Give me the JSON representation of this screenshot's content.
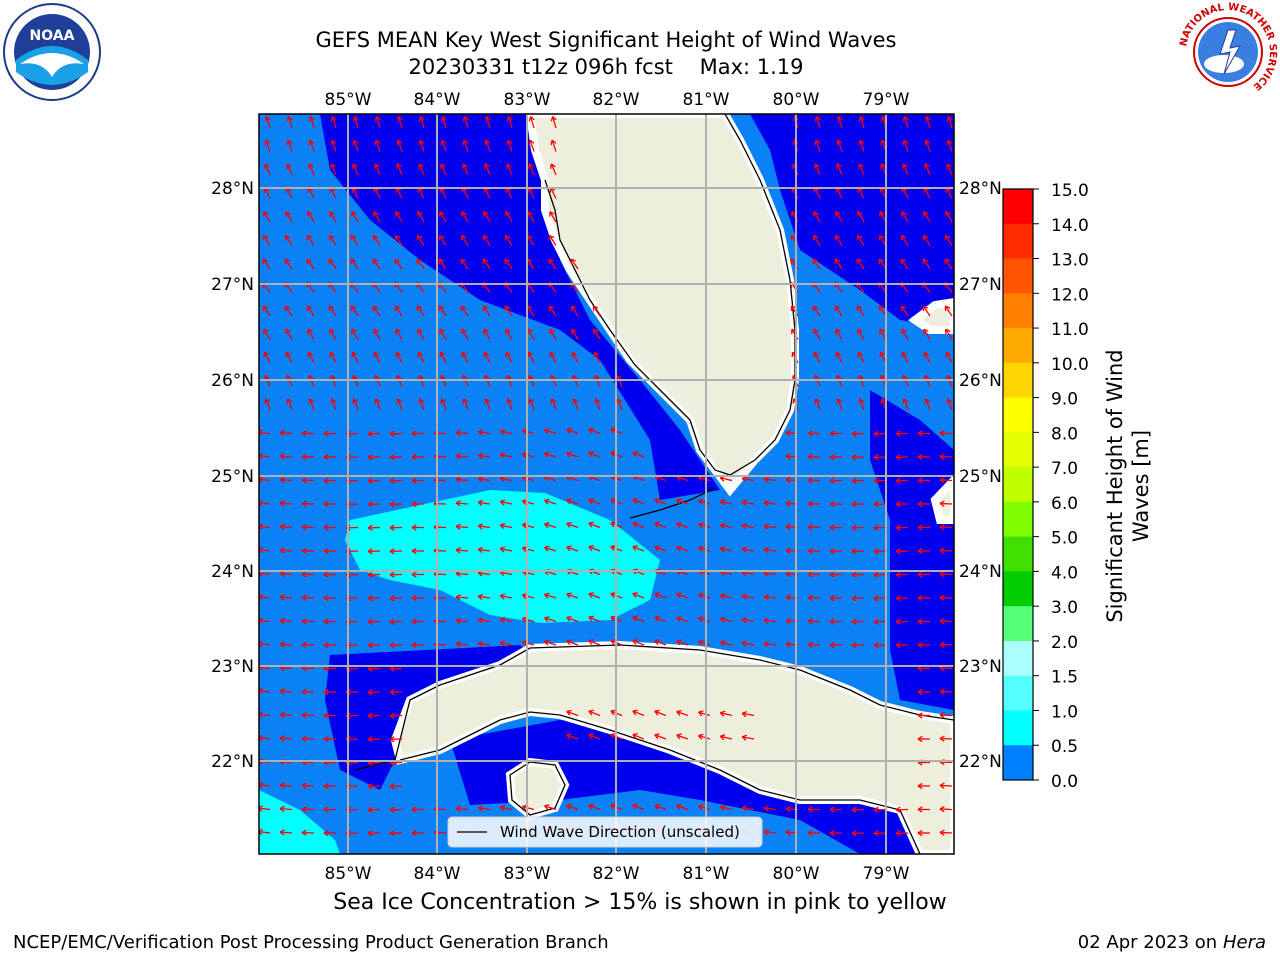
{
  "title": {
    "line1": "GEFS MEAN Key West Significant Height of Wind Waves",
    "line2_date": "20230331 t12z 096h fcst",
    "line2_max": "Max: 1.19"
  },
  "map": {
    "lon_labels": [
      "85°W",
      "84°W",
      "83°W",
      "82°W",
      "81°W",
      "80°W",
      "79°W"
    ],
    "lat_labels": [
      "28°N",
      "27°N",
      "26°N",
      "25°N",
      "24°N",
      "23°N",
      "22°N"
    ],
    "legend_label": "Wind Wave Direction (unscaled)"
  },
  "colorbar": {
    "label_line1": "Significant Height of Wind",
    "label_line2": "Waves [m]",
    "ticks": [
      "15.0",
      "14.0",
      "13.0",
      "12.0",
      "11.0",
      "10.0",
      "9.0",
      "8.0",
      "7.0",
      "6.0",
      "5.0",
      "4.0",
      "3.0",
      "2.0",
      "1.5",
      "1.0",
      "0.5",
      "0.0"
    ],
    "colors": [
      "#ff0000",
      "#ff2a00",
      "#ff5500",
      "#ff7f00",
      "#ffaa00",
      "#ffd400",
      "#ffff00",
      "#e6ff00",
      "#bfff00",
      "#7fff00",
      "#3fdf00",
      "#00cc00",
      "#55ff77",
      "#aaffff",
      "#55ffff",
      "#00ffff",
      "#0080ff",
      "#0000ff"
    ]
  },
  "colors": {
    "deep_blue": "#0000ee",
    "mid_blue": "#0a82f5",
    "cyan": "#00ffff",
    "land": "#eeeedd",
    "arrow": "#ff0000"
  },
  "footer": {
    "ice_note": "Sea Ice Concentration > 15% is shown in pink to yellow",
    "left": "NCEP/EMC/Verification Post Processing Product Generation Branch",
    "right_date": "02 Apr 2023 on ",
    "right_host": "Hera"
  },
  "logos": {
    "noaa_text": "NOAA",
    "nws_text": "NATIONAL WEATHER SERVICE"
  }
}
